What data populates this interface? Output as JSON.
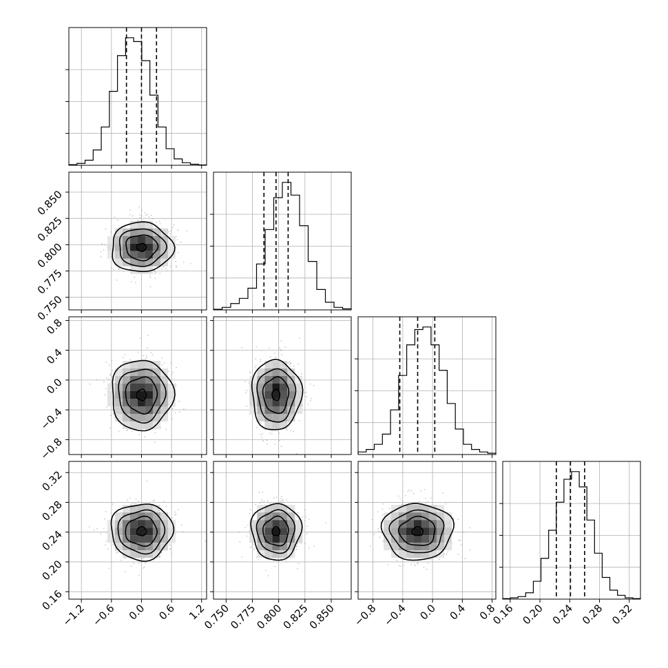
{
  "chart_data": {
    "type": "corner",
    "grid": true,
    "n_parameters": 4,
    "quantile_lines": "dashed vertical lines on each histogram",
    "colors": {
      "line": "#000000",
      "grid": "#b0b0b0",
      "scatter": "#9a9a9a"
    },
    "params": [
      {
        "mean": 0.0,
        "sd": 0.3,
        "q": [
          -0.3,
          0.0,
          0.3
        ],
        "range": [
          -1.45,
          1.3
        ],
        "ticks": [
          -1.2,
          -0.6,
          0.0,
          0.6,
          1.2
        ],
        "tick_labels": [
          "−1.2",
          "−0.6",
          "0.0",
          "0.6",
          "1.2"
        ],
        "hist": [
          0.005,
          0.015,
          0.04,
          0.12,
          0.3,
          0.58,
          0.86,
          1.0,
          0.97,
          0.82,
          0.55,
          0.3,
          0.13,
          0.05,
          0.02,
          0.008,
          0.003
        ]
      },
      {
        "mean": 0.7975,
        "sd": 0.0115,
        "q": [
          0.786,
          0.7975,
          0.809
        ],
        "range": [
          0.738,
          0.869
        ],
        "ticks": [
          0.75,
          0.775,
          0.8,
          0.825,
          0.85
        ],
        "tick_labels": [
          "0.750",
          "0.775",
          "0.800",
          "0.825",
          "0.850"
        ],
        "hist": [
          0.005,
          0.02,
          0.05,
          0.09,
          0.17,
          0.36,
          0.63,
          0.88,
          1.0,
          0.9,
          0.66,
          0.38,
          0.16,
          0.06,
          0.02,
          0.008
        ]
      },
      {
        "mean": -0.2,
        "sd": 0.23,
        "q": [
          -0.44,
          -0.2,
          0.03
        ],
        "range": [
          -1.0,
          0.85
        ],
        "ticks": [
          -0.8,
          -0.4,
          0.0,
          0.4,
          0.8
        ],
        "tick_labels": [
          "−0.8",
          "−0.4",
          "0.0",
          "0.4",
          "0.8"
        ],
        "hist": [
          0.02,
          0.04,
          0.08,
          0.16,
          0.35,
          0.62,
          0.86,
          0.98,
          1.0,
          0.86,
          0.66,
          0.4,
          0.2,
          0.08,
          0.04,
          0.02,
          0.01
        ]
      },
      {
        "mean": 0.241,
        "sd": 0.0185,
        "q": [
          0.222,
          0.241,
          0.26
        ],
        "range": [
          0.15,
          0.335
        ],
        "ticks": [
          0.16,
          0.2,
          0.24,
          0.28,
          0.32
        ],
        "tick_labels": [
          "0.16",
          "0.20",
          "0.24",
          "0.28",
          "0.32"
        ],
        "hist": [
          0.004,
          0.01,
          0.02,
          0.05,
          0.14,
          0.32,
          0.54,
          0.76,
          0.94,
          1.0,
          0.88,
          0.62,
          0.36,
          0.17,
          0.07,
          0.03,
          0.01,
          0.004
        ]
      }
    ]
  }
}
